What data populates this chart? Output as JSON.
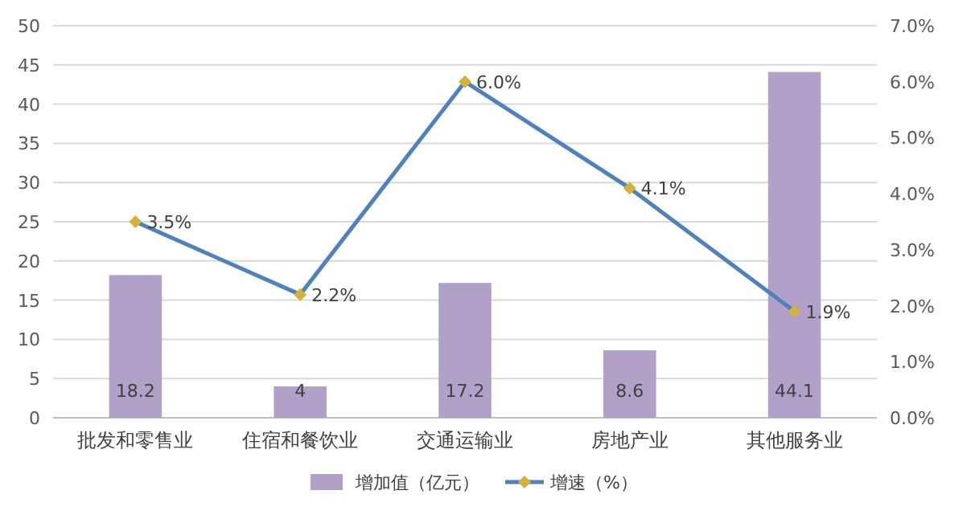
{
  "chart_data": {
    "type": "bar",
    "categories": [
      "批发和零售业",
      "住宿和餐饮业",
      "交通运输业",
      "房地产业",
      "其他服务业"
    ],
    "series": [
      {
        "name": "增加值（亿元）",
        "color": "#b1a0c7",
        "values": [
          18.2,
          4,
          17.2,
          8.6,
          44.1
        ],
        "value_labels": [
          "18.2",
          "4",
          "17.2",
          "8.6",
          "44.1"
        ]
      },
      {
        "name": "增速（%）",
        "type": "line",
        "axis": "y2",
        "color": "#4f81bd",
        "values": [
          3.5,
          2.2,
          6.0,
          4.1,
          1.9
        ],
        "value_labels": [
          "3.5%",
          "2.2%",
          "6.0%",
          "4.1%",
          "1.9%"
        ],
        "marker": "diamond"
      }
    ],
    "ylim": [
      0,
      50
    ],
    "yticks": [
      0,
      5,
      10,
      15,
      20,
      25,
      30,
      35,
      40,
      45,
      50
    ],
    "y2lim": [
      0,
      7
    ],
    "y2ticks": [
      {
        "value": 0,
        "label": "0.0%"
      },
      {
        "value": 1,
        "label": "1.0%"
      },
      {
        "value": 2,
        "label": "2.0%"
      },
      {
        "value": 3,
        "label": "3.0%"
      },
      {
        "value": 4,
        "label": "4.0%"
      },
      {
        "value": 5,
        "label": "5.0%"
      },
      {
        "value": 6,
        "label": "6.0%"
      },
      {
        "value": 7,
        "label": "7.0%"
      }
    ],
    "grid": "y",
    "legend": "bottom"
  }
}
